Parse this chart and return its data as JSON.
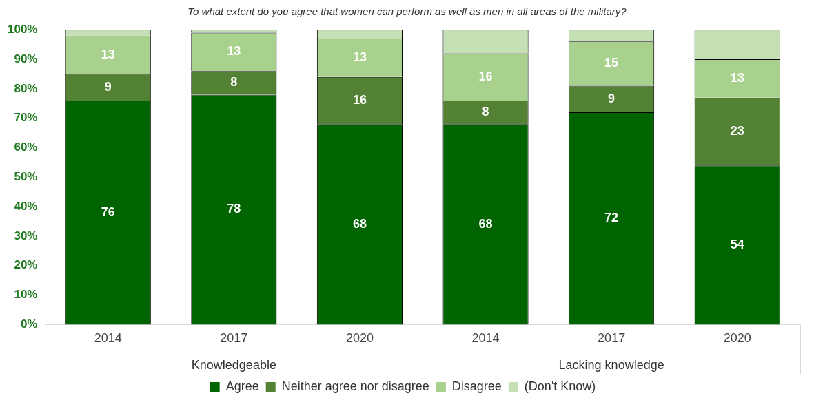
{
  "chart_data": {
    "type": "bar",
    "stacked": true,
    "title": "To what extent do you agree that women can perform as well as men in all areas of the military?",
    "categories": [
      "2014",
      "2017",
      "2020",
      "2014",
      "2017",
      "2020"
    ],
    "annotations": [
      "Knowledgeable",
      "Lacking knowledge"
    ],
    "series": [
      {
        "name": "Agree",
        "color": "#006400",
        "values": [
          76,
          78,
          68,
          68,
          72,
          54
        ],
        "value_labels": [
          "76",
          "78",
          "68",
          "68",
          "72",
          "54"
        ]
      },
      {
        "name": "Neither agree nor disagree",
        "color": "#548235",
        "values": [
          9,
          8,
          16,
          8,
          9,
          23
        ],
        "value_labels": [
          "9",
          "8",
          "16",
          "8",
          "9",
          "23"
        ]
      },
      {
        "name": "Disagree",
        "color": "#a9d18e",
        "values": [
          13,
          13,
          13,
          16,
          15,
          13
        ],
        "value_labels": [
          "13",
          "13",
          "13",
          "16",
          "15",
          "13"
        ]
      },
      {
        "name": "(Don't Know)",
        "color": "#c5e0b4",
        "values": [
          2,
          1,
          3,
          8,
          4,
          10
        ]
      }
    ],
    "ylim": [
      0,
      100
    ],
    "yticks": [
      {
        "value": 0,
        "label": "0%"
      },
      {
        "value": 10,
        "label": "10%"
      },
      {
        "value": 20,
        "label": "20%"
      },
      {
        "value": 30,
        "label": "30%"
      },
      {
        "value": 40,
        "label": "40%"
      },
      {
        "value": 50,
        "label": "50%"
      },
      {
        "value": 60,
        "label": "60%"
      },
      {
        "value": 70,
        "label": "70%"
      },
      {
        "value": 80,
        "label": "80%"
      },
      {
        "value": 90,
        "label": "90%"
      },
      {
        "value": 100,
        "label": "100%"
      }
    ],
    "grid": false,
    "legend": "bottom"
  }
}
